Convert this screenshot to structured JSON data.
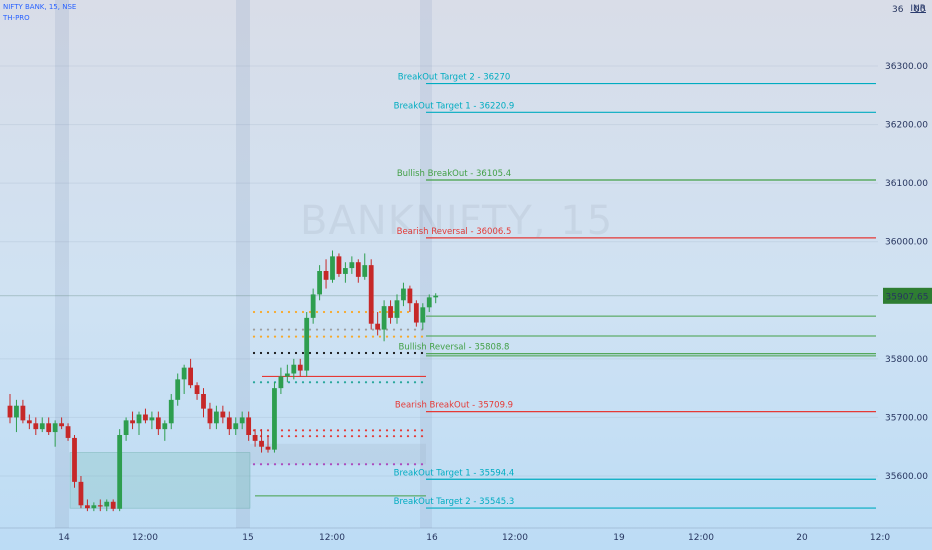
{
  "header": {
    "symbol_line": "NIFTY BANK, 15, NSE",
    "indicator": "TH-PRO",
    "currency": "INR"
  },
  "watermark": "BANKNIFTY, 15",
  "price_tag": {
    "value": "35907.65",
    "color": "#2e7d32"
  },
  "chart_data": {
    "type": "candlestick",
    "title": "",
    "ylim": [
      35540,
      36380
    ],
    "y_ticks": [
      {
        "value": 36300,
        "label": "36300.00"
      },
      {
        "value": 36200,
        "label": "36200.00"
      },
      {
        "value": 36100,
        "label": "36100.00"
      },
      {
        "value": 36000,
        "label": "36000.00"
      },
      {
        "value": 35800,
        "label": "35800.00"
      },
      {
        "value": 35700,
        "label": "35700.00"
      },
      {
        "value": 35600,
        "label": "35600.00"
      }
    ],
    "top_label": "36",
    "top_label_right": "00",
    "x_ticks": [
      "14",
      "12:00",
      "15",
      "12:00",
      "16",
      "12:00",
      "19",
      "12:00",
      "20",
      "12:0"
    ],
    "current_price": 35907.65,
    "levels": [
      {
        "label": "BreakOut Target 2 - 36270",
        "value": 36270,
        "color": "#00acc1"
      },
      {
        "label": "BreakOut Target 1 - 36220.9",
        "value": 36220.9,
        "color": "#00acc1"
      },
      {
        "label": "Bullish BreakOut - 36105.4",
        "value": 36105.4,
        "color": "#43a047"
      },
      {
        "label": "Bearish Reversal - 36006.5",
        "value": 36006.5,
        "color": "#e53935"
      },
      {
        "label": "Bullish Reversal - 35808.8",
        "value": 35808.8,
        "color": "#43a047"
      },
      {
        "label": "Bearish BreakOut - 35709.9",
        "value": 35709.9,
        "color": "#e53935"
      },
      {
        "label": "BreakOut Target 1 - 35594.4",
        "value": 35594.4,
        "color": "#00acc1"
      },
      {
        "label": "BreakOut Target 2 - 35545.3",
        "value": 35545.3,
        "color": "#00acc1"
      }
    ],
    "extra_levels": [
      {
        "value": 35873,
        "color": "#43a047"
      },
      {
        "value": 35839,
        "color": "#43a047"
      },
      {
        "value": 35805,
        "color": "#43a047"
      }
    ],
    "candles": [
      {
        "o": 35720,
        "h": 35740,
        "l": 35690,
        "c": 35700
      },
      {
        "o": 35700,
        "h": 35730,
        "l": 35675,
        "c": 35720
      },
      {
        "o": 35720,
        "h": 35730,
        "l": 35690,
        "c": 35695
      },
      {
        "o": 35695,
        "h": 35705,
        "l": 35680,
        "c": 35690
      },
      {
        "o": 35690,
        "h": 35700,
        "l": 35670,
        "c": 35680
      },
      {
        "o": 35680,
        "h": 35700,
        "l": 35675,
        "c": 35690
      },
      {
        "o": 35690,
        "h": 35700,
        "l": 35670,
        "c": 35675
      },
      {
        "o": 35675,
        "h": 35695,
        "l": 35650,
        "c": 35690
      },
      {
        "o": 35690,
        "h": 35700,
        "l": 35680,
        "c": 35685
      },
      {
        "o": 35685,
        "h": 35690,
        "l": 35660,
        "c": 35665
      },
      {
        "o": 35665,
        "h": 35670,
        "l": 35580,
        "c": 35590
      },
      {
        "o": 35590,
        "h": 35600,
        "l": 35545,
        "c": 35550
      },
      {
        "o": 35550,
        "h": 35560,
        "l": 35540,
        "c": 35545
      },
      {
        "o": 35545,
        "h": 35555,
        "l": 35540,
        "c": 35550
      },
      {
        "o": 35550,
        "h": 35560,
        "l": 35540,
        "c": 35548
      },
      {
        "o": 35548,
        "h": 35560,
        "l": 35540,
        "c": 35556
      },
      {
        "o": 35556,
        "h": 35560,
        "l": 35540,
        "c": 35544
      },
      {
        "o": 35544,
        "h": 35680,
        "l": 35540,
        "c": 35670
      },
      {
        "o": 35670,
        "h": 35700,
        "l": 35660,
        "c": 35695
      },
      {
        "o": 35695,
        "h": 35710,
        "l": 35680,
        "c": 35690
      },
      {
        "o": 35690,
        "h": 35710,
        "l": 35670,
        "c": 35705
      },
      {
        "o": 35705,
        "h": 35715,
        "l": 35690,
        "c": 35695
      },
      {
        "o": 35695,
        "h": 35710,
        "l": 35680,
        "c": 35700
      },
      {
        "o": 35700,
        "h": 35710,
        "l": 35670,
        "c": 35680
      },
      {
        "o": 35680,
        "h": 35695,
        "l": 35660,
        "c": 35690
      },
      {
        "o": 35690,
        "h": 35740,
        "l": 35680,
        "c": 35730
      },
      {
        "o": 35730,
        "h": 35775,
        "l": 35720,
        "c": 35765
      },
      {
        "o": 35765,
        "h": 35790,
        "l": 35740,
        "c": 35785
      },
      {
        "o": 35785,
        "h": 35800,
        "l": 35750,
        "c": 35755
      },
      {
        "o": 35755,
        "h": 35760,
        "l": 35730,
        "c": 35740
      },
      {
        "o": 35740,
        "h": 35750,
        "l": 35700,
        "c": 35715
      },
      {
        "o": 35715,
        "h": 35725,
        "l": 35680,
        "c": 35690
      },
      {
        "o": 35690,
        "h": 35720,
        "l": 35680,
        "c": 35710
      },
      {
        "o": 35710,
        "h": 35720,
        "l": 35690,
        "c": 35700
      },
      {
        "o": 35700,
        "h": 35710,
        "l": 35670,
        "c": 35680
      },
      {
        "o": 35680,
        "h": 35700,
        "l": 35670,
        "c": 35690
      },
      {
        "o": 35690,
        "h": 35710,
        "l": 35680,
        "c": 35700
      },
      {
        "o": 35700,
        "h": 35710,
        "l": 35660,
        "c": 35670
      },
      {
        "o": 35670,
        "h": 35680,
        "l": 35650,
        "c": 35660
      },
      {
        "o": 35660,
        "h": 35680,
        "l": 35640,
        "c": 35650
      },
      {
        "o": 35650,
        "h": 35670,
        "l": 35640,
        "c": 35645
      },
      {
        "o": 35645,
        "h": 35760,
        "l": 35640,
        "c": 35750
      },
      {
        "o": 35750,
        "h": 35785,
        "l": 35740,
        "c": 35770
      },
      {
        "o": 35770,
        "h": 35790,
        "l": 35760,
        "c": 35775
      },
      {
        "o": 35775,
        "h": 35800,
        "l": 35765,
        "c": 35790
      },
      {
        "o": 35790,
        "h": 35800,
        "l": 35770,
        "c": 35780
      },
      {
        "o": 35780,
        "h": 35880,
        "l": 35770,
        "c": 35870
      },
      {
        "o": 35870,
        "h": 35920,
        "l": 35860,
        "c": 35910
      },
      {
        "o": 35910,
        "h": 35960,
        "l": 35900,
        "c": 35950
      },
      {
        "o": 35950,
        "h": 35970,
        "l": 35920,
        "c": 35935
      },
      {
        "o": 35935,
        "h": 35985,
        "l": 35930,
        "c": 35975
      },
      {
        "o": 35975,
        "h": 35980,
        "l": 35940,
        "c": 35945
      },
      {
        "o": 35945,
        "h": 35965,
        "l": 35930,
        "c": 35955
      },
      {
        "o": 35955,
        "h": 35975,
        "l": 35945,
        "c": 35965
      },
      {
        "o": 35965,
        "h": 35970,
        "l": 35930,
        "c": 35940
      },
      {
        "o": 35940,
        "h": 35980,
        "l": 35935,
        "c": 35960
      },
      {
        "o": 35960,
        "h": 35970,
        "l": 35850,
        "c": 35860
      },
      {
        "o": 35860,
        "h": 35880,
        "l": 35840,
        "c": 35850
      },
      {
        "o": 35850,
        "h": 35900,
        "l": 35830,
        "c": 35890
      },
      {
        "o": 35890,
        "h": 35900,
        "l": 35860,
        "c": 35870
      },
      {
        "o": 35870,
        "h": 35910,
        "l": 35860,
        "c": 35900
      },
      {
        "o": 35900,
        "h": 35930,
        "l": 35890,
        "c": 35920
      },
      {
        "o": 35920,
        "h": 35925,
        "l": 35880,
        "c": 35895
      },
      {
        "o": 35895,
        "h": 35900,
        "l": 35855,
        "c": 35862
      },
      {
        "o": 35862,
        "h": 35895,
        "l": 35850,
        "c": 35888
      },
      {
        "o": 35888,
        "h": 35910,
        "l": 35880,
        "c": 35905
      },
      {
        "o": 35905,
        "h": 35912,
        "l": 35895,
        "c": 35908
      }
    ]
  }
}
